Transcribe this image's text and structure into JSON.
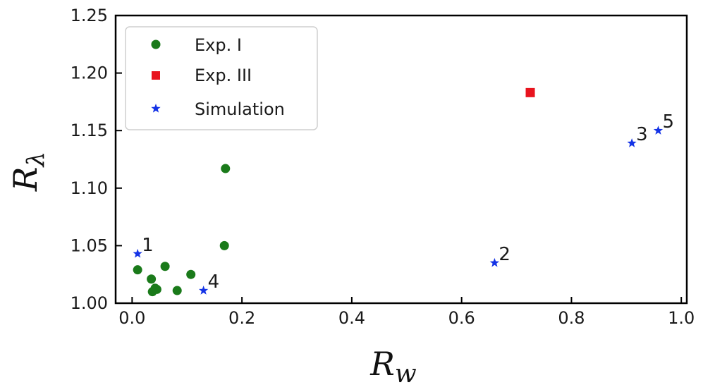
{
  "chart_data": {
    "type": "scatter",
    "title": "",
    "xlabel": {
      "base": "R",
      "sub": "w"
    },
    "ylabel": {
      "base": "R",
      "sub": "λ"
    },
    "xlim": [
      -0.03,
      1.01
    ],
    "ylim": [
      1.0,
      1.25
    ],
    "xticks": [
      0.0,
      0.2,
      0.4,
      0.6,
      0.8,
      1.0
    ],
    "xtick_labels": [
      "0.0",
      "0.2",
      "0.4",
      "0.6",
      "0.8",
      "1.0"
    ],
    "yticks": [
      1.0,
      1.05,
      1.1,
      1.15,
      1.2,
      1.25
    ],
    "ytick_labels": [
      "1.00",
      "1.05",
      "1.10",
      "1.15",
      "1.20",
      "1.25"
    ],
    "grid": false,
    "legend_position": "top-left",
    "series": [
      {
        "name": "Exp. I",
        "marker": "circle",
        "color": "#1a7a1a",
        "points": [
          {
            "x": 0.01,
            "y": 1.029
          },
          {
            "x": 0.035,
            "y": 1.021
          },
          {
            "x": 0.037,
            "y": 1.01
          },
          {
            "x": 0.042,
            "y": 1.013
          },
          {
            "x": 0.045,
            "y": 1.012
          },
          {
            "x": 0.06,
            "y": 1.032
          },
          {
            "x": 0.082,
            "y": 1.011
          },
          {
            "x": 0.107,
            "y": 1.025
          },
          {
            "x": 0.168,
            "y": 1.05
          },
          {
            "x": 0.17,
            "y": 1.117
          }
        ]
      },
      {
        "name": "Exp. III",
        "marker": "square",
        "color": "#e8141e",
        "points": [
          {
            "x": 0.725,
            "y": 1.183
          }
        ]
      },
      {
        "name": "Simulation",
        "marker": "star",
        "color": "#1433e6",
        "points": [
          {
            "x": 0.01,
            "y": 1.043,
            "label": "1"
          },
          {
            "x": 0.66,
            "y": 1.035,
            "label": "2"
          },
          {
            "x": 0.91,
            "y": 1.139,
            "label": "3"
          },
          {
            "x": 0.13,
            "y": 1.011,
            "label": "4"
          },
          {
            "x": 0.958,
            "y": 1.15,
            "label": "5"
          }
        ]
      }
    ]
  }
}
